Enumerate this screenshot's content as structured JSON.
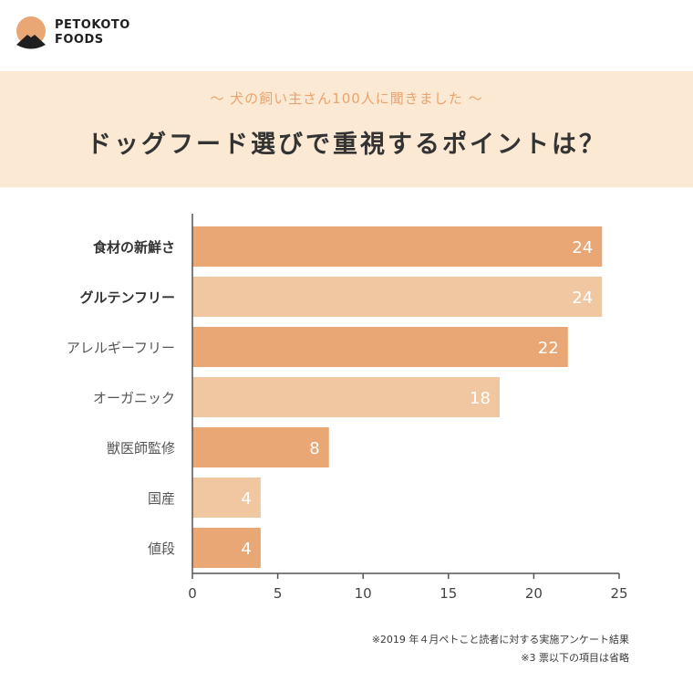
{
  "brand": {
    "line1": "PETOKOTO",
    "line2": "FOODS"
  },
  "banner": {
    "subtitle": "〜 犬の飼い主さん100人に聞きました 〜",
    "title": "ドッグフード選びで重視するポイントは？"
  },
  "chart_data": {
    "type": "bar",
    "orientation": "horizontal",
    "categories": [
      "食材の新鮮さ",
      "グルテンフリー",
      "アレルギーフリー",
      "オーガニック",
      "獣医師監修",
      "国産",
      "値段"
    ],
    "values": [
      24,
      24,
      22,
      18,
      8,
      4,
      4
    ],
    "bold_categories": [
      "食材の新鮮さ",
      "グルテンフリー"
    ],
    "colors": [
      "#e8a774",
      "#f1c7a1"
    ],
    "xlim": [
      0,
      25
    ],
    "xticks": [
      0,
      5,
      10,
      15,
      20,
      25
    ],
    "grid": false
  },
  "notes": {
    "note1": "※2019 年４月ペトこと読者に対する実施アンケート結果",
    "note2": "※3 票以下の項目は省略"
  }
}
